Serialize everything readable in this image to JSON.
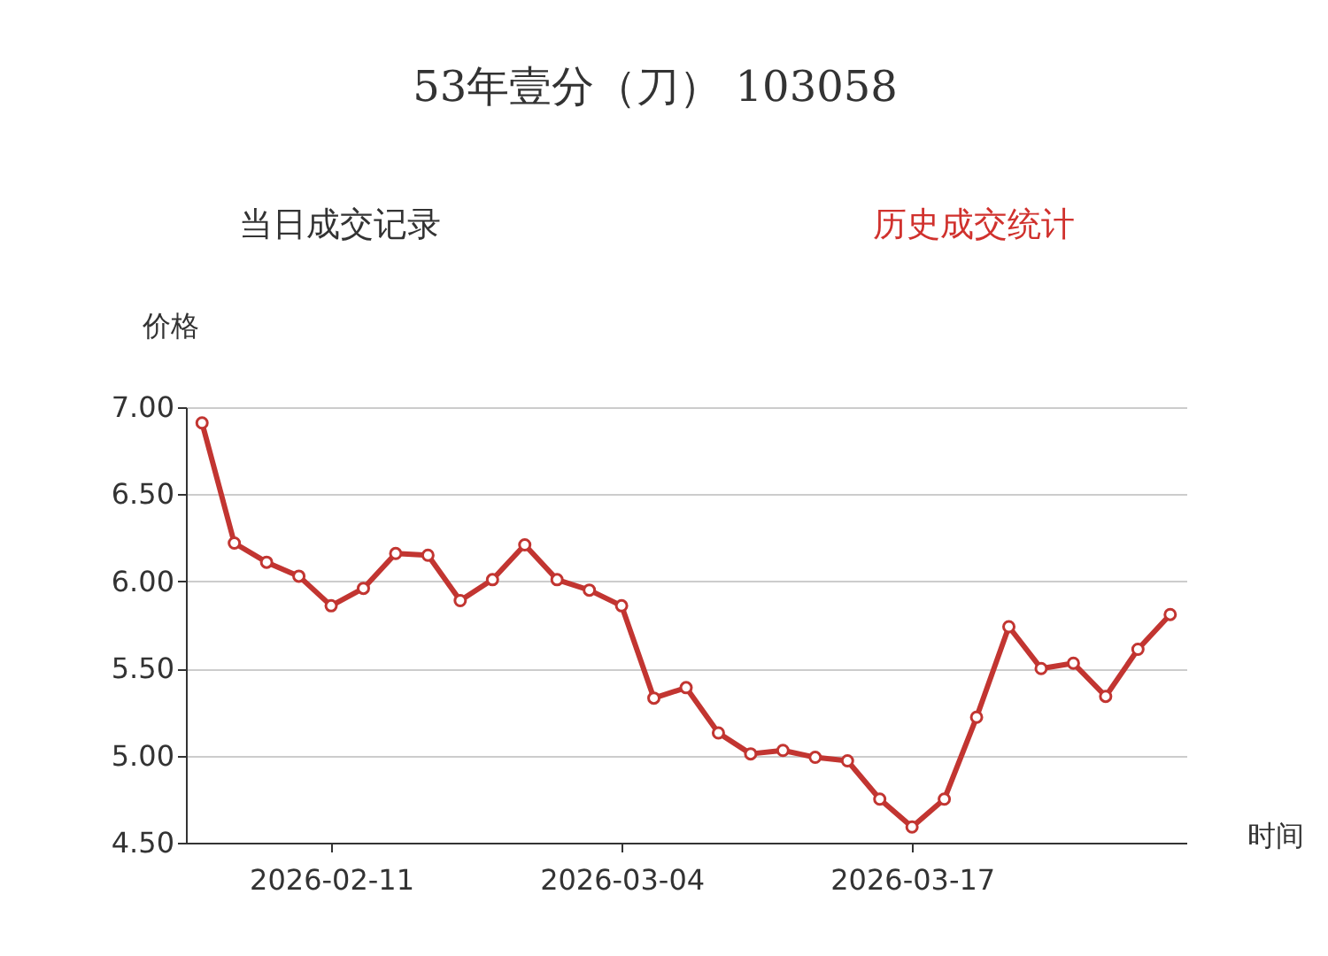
{
  "chart_data": {
    "type": "line",
    "title": "53年壹分（刀） 103058",
    "annotations": [
      "当日成交记录",
      "历史成交统计"
    ],
    "xlabel": "时间",
    "ylabel": "价格",
    "categories": [
      null,
      null,
      null,
      null,
      "2026-02-11",
      null,
      null,
      null,
      null,
      null,
      null,
      null,
      null,
      "2026-03-04",
      null,
      null,
      null,
      null,
      null,
      null,
      null,
      null,
      "2026-03-17",
      null,
      null,
      null,
      null,
      null,
      null,
      null,
      null
    ],
    "series": [
      {
        "color": "#c23531",
        "values": [
          6.91,
          6.22,
          6.11,
          6.03,
          5.86,
          5.96,
          6.16,
          6.15,
          5.89,
          6.01,
          6.21,
          6.01,
          5.95,
          5.86,
          5.33,
          5.39,
          5.13,
          5.01,
          5.03,
          4.99,
          4.97,
          4.75,
          4.59,
          4.75,
          5.22,
          5.74,
          5.5,
          5.53,
          5.34,
          5.61,
          5.81
        ]
      }
    ],
    "ylim": [
      4.5,
      7.0
    ],
    "yticks": [
      {
        "value": 4.5,
        "label": "4.50"
      },
      {
        "value": 5.0,
        "label": "5.00"
      },
      {
        "value": 5.5,
        "label": "5.50"
      },
      {
        "value": 6.0,
        "label": "6.00"
      },
      {
        "value": 6.5,
        "label": "6.50"
      },
      {
        "value": 7.0,
        "label": "7.00"
      }
    ],
    "grid": "y",
    "marker": "circle",
    "line_style": "solid"
  }
}
